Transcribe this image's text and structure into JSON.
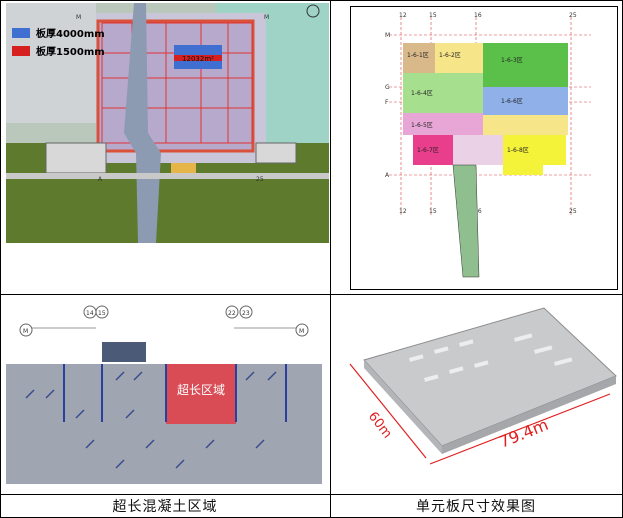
{
  "panel_a": {
    "legend": [
      {
        "label": "板厚4000mm",
        "color": "#3f6fd1"
      },
      {
        "label": "板厚1500mm",
        "color": "#d62020"
      }
    ],
    "area_label": "12032m²",
    "axis_top_left": "M",
    "axis_top_right": "M",
    "axis_bottom_left": "A",
    "axis_bottom_right": "25"
  },
  "panel_b": {
    "axis_labels_top": [
      "12",
      "15",
      "16",
      "25"
    ],
    "axis_labels_bottom": [
      "12",
      "15",
      "16",
      "25"
    ],
    "row_labels": [
      "M",
      "G",
      "F",
      "A"
    ],
    "zones": [
      {
        "label": "1-6-1区",
        "color": "#d9b98a"
      },
      {
        "label": "1-6-2区",
        "color": "#f7e58a"
      },
      {
        "label": "1-6-3区",
        "color": "#5bc04a"
      },
      {
        "label": "1-6-4区",
        "color": "#a6e08e"
      },
      {
        "label": "1-6-5区",
        "color": "#e8a6d6"
      },
      {
        "label": "1-6-6区",
        "color": "#8fb0e8"
      },
      {
        "label": "1-6-7区",
        "color": "#e83e8c"
      },
      {
        "label": "1-6-8区",
        "color": "#f5f23a"
      }
    ]
  },
  "panel_c": {
    "axis_left": "M",
    "axis_right": "M",
    "axis_pair_left": [
      "14",
      "15"
    ],
    "axis_pair_right": [
      "22",
      "23"
    ],
    "region_label": "超长区域"
  },
  "panel_d": {
    "dim_width": "60m",
    "dim_length": "79.4m"
  },
  "captions": {
    "left": "超长混凝土区域",
    "right": "单元板尺寸效果图"
  },
  "colors": {
    "thick4000": "#3f6fd1",
    "thick1500": "#d62020",
    "dimension": "#e02020"
  }
}
